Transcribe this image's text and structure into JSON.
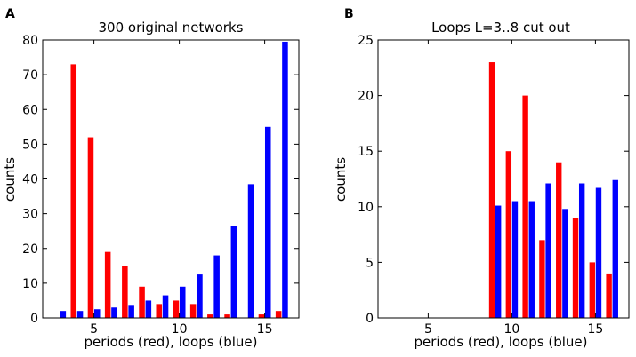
{
  "colors": {
    "periods": "#ff0000",
    "loops": "#0000ff"
  },
  "chart_data": [
    {
      "type": "bar",
      "panel_label": "A",
      "title": "300 original networks",
      "xlabel": "periods (red), loops (blue)",
      "ylabel": "counts",
      "xlim": [
        2,
        17
      ],
      "ylim": [
        0,
        80
      ],
      "xticks": [
        5,
        10,
        15
      ],
      "yticks": [
        0,
        10,
        20,
        30,
        40,
        50,
        60,
        70,
        80
      ],
      "grid": false,
      "series": [
        {
          "name": "periods (red)",
          "color": "#ff0000",
          "x": [
            4,
            5,
            6,
            7,
            8,
            9,
            10,
            11,
            12,
            13,
            14,
            15,
            16
          ],
          "values": [
            73,
            52,
            19,
            15,
            9,
            4,
            5,
            4,
            1,
            1,
            0,
            1,
            2
          ]
        },
        {
          "name": "loops (blue)",
          "color": "#0000ff",
          "x": [
            3,
            4,
            5,
            6,
            7,
            8,
            9,
            10,
            11,
            12,
            13,
            14,
            15,
            16
          ],
          "values": [
            2,
            2,
            2.5,
            3,
            3.5,
            5,
            6.5,
            9,
            12.5,
            18,
            26.5,
            38.5,
            55,
            79.5
          ]
        }
      ]
    },
    {
      "type": "bar",
      "panel_label": "B",
      "title": "Loops L=3..8 cut out",
      "xlabel": "periods (red), loops (blue)",
      "ylabel": "counts",
      "xlim": [
        2,
        17
      ],
      "ylim": [
        0,
        25
      ],
      "xticks": [
        5,
        10,
        15
      ],
      "yticks": [
        0,
        5,
        10,
        15,
        20,
        25
      ],
      "grid": false,
      "series": [
        {
          "name": "periods (red)",
          "color": "#ff0000",
          "x": [
            9,
            10,
            11,
            12,
            13,
            14,
            15,
            16
          ],
          "values": [
            23,
            15,
            20,
            7,
            14,
            9,
            5,
            4
          ]
        },
        {
          "name": "loops (blue)",
          "color": "#0000ff",
          "x": [
            9,
            10,
            11,
            12,
            13,
            14,
            15,
            16
          ],
          "values": [
            10.1,
            10.5,
            10.5,
            12.1,
            9.8,
            12.1,
            11.7,
            12.4
          ]
        }
      ]
    }
  ]
}
